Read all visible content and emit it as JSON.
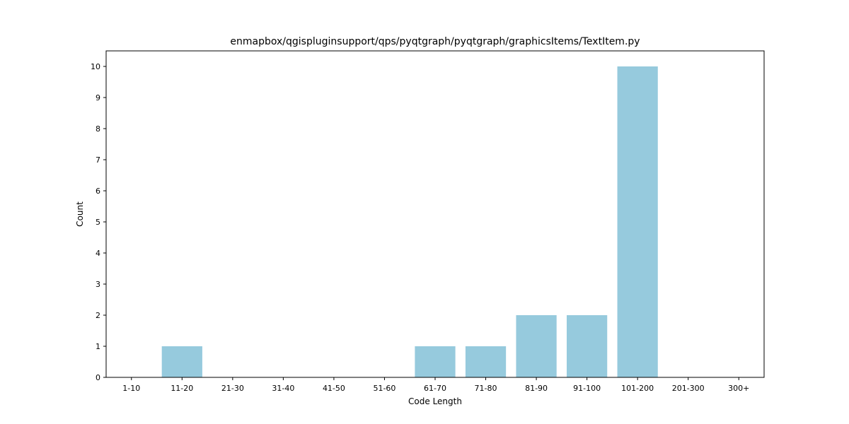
{
  "chart_data": {
    "type": "bar",
    "title": "enmapbox/qgispluginsupport/qps/pyqtgraph/pyqtgraph/graphicsItems/TextItem.py",
    "xlabel": "Code Length",
    "ylabel": "Count",
    "categories": [
      "1-10",
      "11-20",
      "21-30",
      "31-40",
      "41-50",
      "51-60",
      "61-70",
      "71-80",
      "81-90",
      "91-100",
      "101-200",
      "201-300",
      "300+"
    ],
    "values": [
      0,
      1,
      0,
      0,
      0,
      0,
      1,
      1,
      2,
      2,
      10,
      0,
      0
    ],
    "ylim": [
      0,
      10.5
    ],
    "yticks": [
      0,
      1,
      2,
      3,
      4,
      5,
      6,
      7,
      8,
      9,
      10
    ],
    "bar_color": "#96cadd",
    "grid": false,
    "legend": "none"
  }
}
